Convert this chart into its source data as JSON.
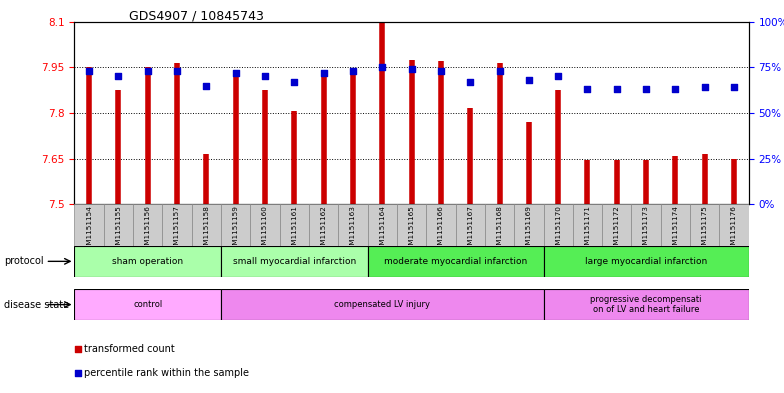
{
  "title": "GDS4907 / 10845743",
  "samples": [
    "GSM1151154",
    "GSM1151155",
    "GSM1151156",
    "GSM1151157",
    "GSM1151158",
    "GSM1151159",
    "GSM1151160",
    "GSM1151161",
    "GSM1151162",
    "GSM1151163",
    "GSM1151164",
    "GSM1151165",
    "GSM1151166",
    "GSM1151167",
    "GSM1151168",
    "GSM1151169",
    "GSM1151170",
    "GSM1151171",
    "GSM1151172",
    "GSM1151173",
    "GSM1151174",
    "GSM1151175",
    "GSM1151176"
  ],
  "transformed_count": [
    7.95,
    7.875,
    7.95,
    7.965,
    7.665,
    7.925,
    7.875,
    7.805,
    7.935,
    7.945,
    8.095,
    7.975,
    7.97,
    7.815,
    7.965,
    7.77,
    7.875,
    7.645,
    7.645,
    7.645,
    7.66,
    7.665,
    7.65
  ],
  "percentile_rank": [
    73,
    70,
    73,
    73,
    65,
    72,
    70,
    67,
    72,
    73,
    75,
    74,
    73,
    67,
    73,
    68,
    70,
    63,
    63,
    63,
    63,
    64,
    64
  ],
  "ylim_left": [
    7.5,
    8.1
  ],
  "ylim_right": [
    0,
    100
  ],
  "yticks_left": [
    7.5,
    7.65,
    7.8,
    7.95,
    8.1
  ],
  "ytick_labels_left": [
    "7.5",
    "7.65",
    "7.8",
    "7.95",
    "8.1"
  ],
  "yticks_right": [
    0,
    25,
    50,
    75,
    100
  ],
  "ytick_labels_right": [
    "0%",
    "25%",
    "50%",
    "75%",
    "100%"
  ],
  "bar_color": "#cc0000",
  "dot_color": "#0000cc",
  "background_color": "#ffffff",
  "proto_bounds": [
    [
      0,
      4,
      "sham operation",
      "#aaffaa"
    ],
    [
      5,
      9,
      "small myocardial infarction",
      "#aaffaa"
    ],
    [
      10,
      15,
      "moderate myocardial infarction",
      "#55ee55"
    ],
    [
      16,
      22,
      "large myocardial infarction",
      "#55ee55"
    ]
  ],
  "disease_bounds": [
    [
      0,
      4,
      "control",
      "#ffaaff"
    ],
    [
      5,
      15,
      "compensated LV injury",
      "#ee88ee"
    ],
    [
      16,
      22,
      "progressive decompensati\non of LV and heart failure",
      "#ee88ee"
    ]
  ],
  "legend_items": [
    {
      "label": "transformed count",
      "color": "#cc0000"
    },
    {
      "label": "percentile rank within the sample",
      "color": "#0000cc"
    }
  ]
}
